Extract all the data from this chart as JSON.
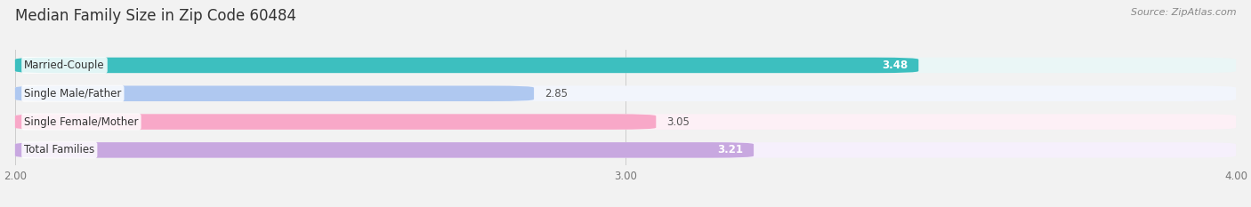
{
  "title": "Median Family Size in Zip Code 60484",
  "source": "Source: ZipAtlas.com",
  "categories": [
    "Married-Couple",
    "Single Male/Father",
    "Single Female/Mother",
    "Total Families"
  ],
  "values": [
    3.48,
    2.85,
    3.05,
    3.21
  ],
  "bar_colors": [
    "#3dbfbf",
    "#afc8f0",
    "#f8a8c8",
    "#c8a8e0"
  ],
  "bar_bg_colors": [
    "#eaf6f6",
    "#f2f5fc",
    "#fdf0f6",
    "#f6f0fc"
  ],
  "value_label_colors": [
    "white",
    "#555555",
    "#555555",
    "white"
  ],
  "value_label_inside": [
    true,
    false,
    false,
    true
  ],
  "xlim": [
    2.0,
    4.0
  ],
  "xticks": [
    2.0,
    3.0,
    4.0
  ],
  "xtick_labels": [
    "2.00",
    "3.00",
    "4.00"
  ],
  "label_fontsize": 8.5,
  "value_fontsize": 8.5,
  "title_fontsize": 12,
  "source_fontsize": 8,
  "background_color": "#f2f2f2",
  "bar_height": 0.55,
  "rounding_size": 0.07
}
